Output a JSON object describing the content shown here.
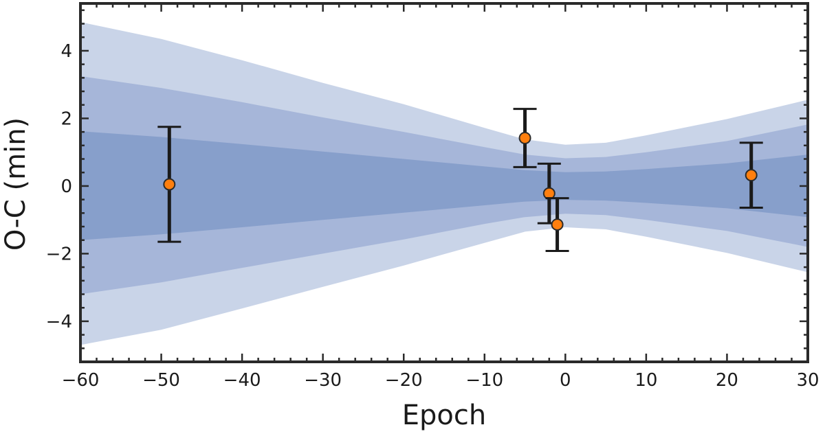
{
  "chart_data": {
    "type": "scatter",
    "title": "",
    "xlabel": "Epoch",
    "ylabel": "O-C (min)",
    "xlim": [
      -60,
      30
    ],
    "ylim": [
      -5.2,
      5.4
    ],
    "x_ticks": [
      -60,
      -50,
      -40,
      -30,
      -20,
      -10,
      0,
      10,
      20,
      30
    ],
    "x_tick_labels": [
      "−60",
      "−50",
      "−40",
      "−30",
      "−20",
      "−10",
      "0",
      "10",
      "20",
      "30"
    ],
    "y_ticks": [
      -4,
      -2,
      0,
      2,
      4
    ],
    "y_tick_labels": [
      "−4",
      "−2",
      "0",
      "2",
      "4"
    ],
    "grid": false,
    "series": [
      {
        "type": "errorbar",
        "marker_color": "#ff7f0e",
        "errorbar_color": "#1a1a1a",
        "points": [
          {
            "x": -49,
            "y": 0.05,
            "yerr": 1.7
          },
          {
            "x": -5,
            "y": 1.42,
            "yerr": 0.86
          },
          {
            "x": -2,
            "y": -0.22,
            "yerr": 0.88
          },
          {
            "x": -1,
            "y": -1.14,
            "yerr": 0.78
          },
          {
            "x": 23,
            "y": 0.32,
            "yerr": 0.96
          }
        ]
      }
    ],
    "confidence_bands": [
      {
        "level": "3-sigma",
        "color": "#c9d4e8",
        "x": [
          -60,
          -50,
          -40,
          -30,
          -20,
          -10,
          -5,
          0,
          5,
          10,
          20,
          30
        ],
        "upper": [
          4.85,
          4.35,
          3.72,
          3.05,
          2.42,
          1.72,
          1.38,
          1.22,
          1.28,
          1.5,
          1.98,
          2.55
        ],
        "lower": [
          -4.7,
          -4.25,
          -3.62,
          -2.98,
          -2.35,
          -1.68,
          -1.35,
          -1.22,
          -1.28,
          -1.5,
          -1.98,
          -2.55
        ]
      },
      {
        "level": "2-sigma",
        "color": "#a6b6d9",
        "x": [
          -60,
          -50,
          -40,
          -30,
          -20,
          -10,
          -5,
          0,
          5,
          10,
          20,
          30
        ],
        "upper": [
          3.25,
          2.9,
          2.48,
          2.03,
          1.6,
          1.15,
          0.93,
          0.82,
          0.86,
          1.0,
          1.33,
          1.82
        ],
        "lower": [
          -3.2,
          -2.85,
          -2.42,
          -2.0,
          -1.58,
          -1.12,
          -0.92,
          -0.82,
          -0.86,
          -1.0,
          -1.33,
          -1.8
        ]
      },
      {
        "level": "1-sigma",
        "color": "#879fcb",
        "x": [
          -60,
          -50,
          -40,
          -30,
          -20,
          -10,
          -5,
          0,
          5,
          10,
          20,
          30
        ],
        "upper": [
          1.62,
          1.45,
          1.24,
          1.02,
          0.8,
          0.58,
          0.47,
          0.41,
          0.43,
          0.5,
          0.67,
          0.93
        ],
        "lower": [
          -1.6,
          -1.43,
          -1.22,
          -1.0,
          -0.79,
          -0.57,
          -0.46,
          -0.41,
          -0.43,
          -0.5,
          -0.66,
          -0.92
        ]
      }
    ]
  }
}
